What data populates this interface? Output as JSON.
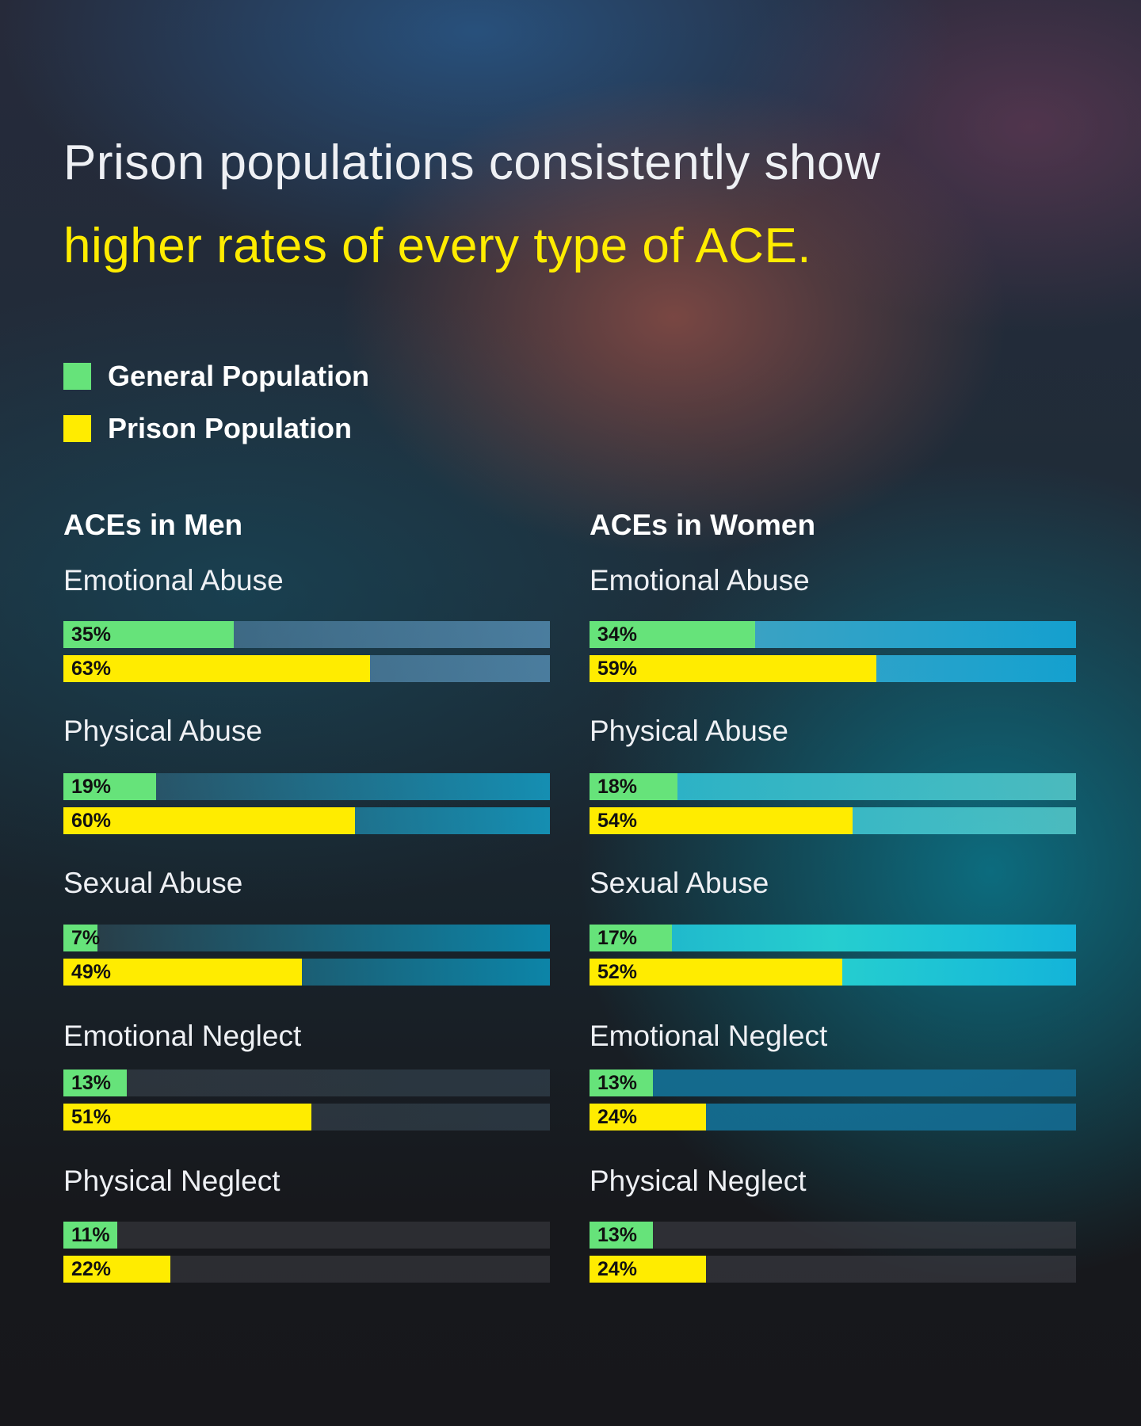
{
  "title_line1": "Prison populations consistently show",
  "title_line2": "higher rates of every type of ACE.",
  "colors": {
    "general": "#66e37a",
    "prison": "#ffec00",
    "highlight": "#ffec00"
  },
  "legend": [
    {
      "label": "General Population",
      "color": "#66e37a"
    },
    {
      "label": "Prison Population",
      "color": "#ffec00"
    }
  ],
  "chart_data": [
    {
      "type": "bar",
      "orientation": "horizontal",
      "title": "ACEs in Men",
      "categories": [
        "Emotional Abuse",
        "Physical Abuse",
        "Sexual Abuse",
        "Emotional Neglect",
        "Physical Neglect"
      ],
      "series": [
        {
          "name": "General Population",
          "values": [
            35,
            19,
            7,
            13,
            11
          ],
          "labels": [
            "35%",
            "19%",
            "7%",
            "13%",
            "11%"
          ]
        },
        {
          "name": "Prison Population",
          "values": [
            63,
            60,
            49,
            51,
            22
          ],
          "labels": [
            "63%",
            "60%",
            "49%",
            "51%",
            "22%"
          ]
        }
      ],
      "xlim": [
        0,
        100
      ]
    },
    {
      "type": "bar",
      "orientation": "horizontal",
      "title": "ACEs in Women",
      "categories": [
        "Emotional Abuse",
        "Physical Abuse",
        "Sexual Abuse",
        "Emotional Neglect",
        "Physical Neglect"
      ],
      "series": [
        {
          "name": "General Population",
          "values": [
            34,
            18,
            17,
            13,
            13
          ],
          "labels": [
            "34%",
            "18%",
            "17%",
            "13%",
            "13%"
          ]
        },
        {
          "name": "Prison Population",
          "values": [
            59,
            54,
            52,
            24,
            24
          ],
          "labels": [
            "59%",
            "54%",
            "52%",
            "24%",
            "24%"
          ]
        }
      ],
      "xlim": [
        0,
        100
      ]
    }
  ]
}
